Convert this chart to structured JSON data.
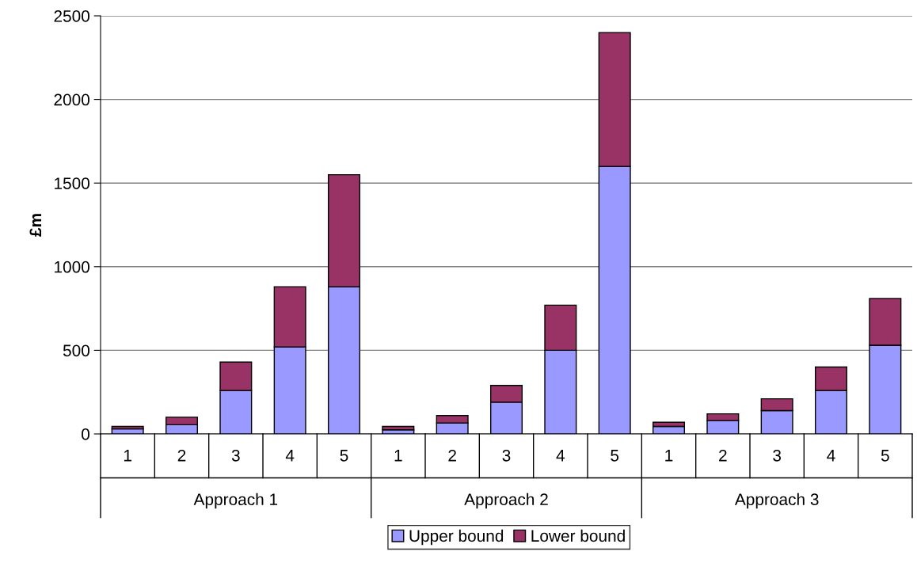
{
  "chart_data": {
    "type": "bar",
    "stacked": true,
    "ylabel": "£m",
    "categories": [
      "1",
      "2",
      "3",
      "4",
      "5",
      "1",
      "2",
      "3",
      "4",
      "5",
      "1",
      "2",
      "3",
      "4",
      "5"
    ],
    "annotations": [
      "Approach 1",
      "Approach 2",
      "Approach 3"
    ],
    "series": [
      {
        "name": "Upper bound",
        "color": "#9999ff",
        "values": [
          30,
          55,
          260,
          520,
          880,
          25,
          65,
          190,
          500,
          1600,
          45,
          80,
          140,
          260,
          530
        ]
      },
      {
        "name": "Lower bound",
        "color": "#993366",
        "values": [
          15,
          45,
          170,
          360,
          670,
          20,
          45,
          100,
          270,
          800,
          25,
          40,
          70,
          140,
          280
        ]
      }
    ],
    "ylim": [
      0,
      2500
    ],
    "yticks": [
      0,
      500,
      1000,
      1500,
      2000,
      2500
    ],
    "grid": "y",
    "legend": "bottom"
  }
}
